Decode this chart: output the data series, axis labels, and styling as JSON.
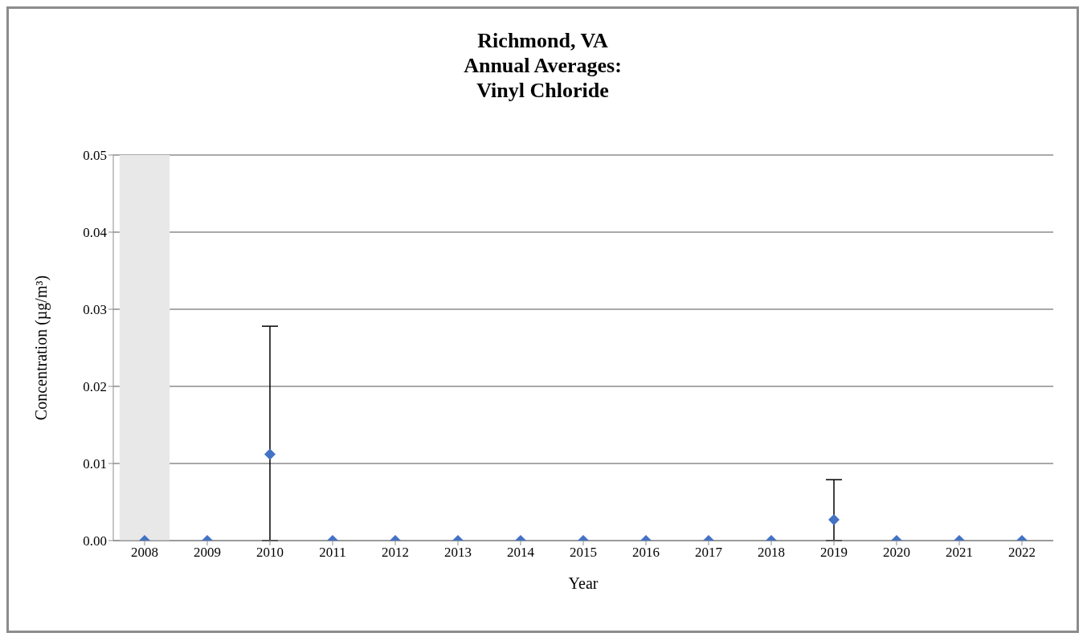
{
  "chart_data": {
    "type": "scatter",
    "title": "Richmond, VA\nAnnual Averages:\nVinyl Chloride",
    "xlabel": "Year",
    "ylabel": "Concentration (µg/m³)",
    "categories": [
      "2008",
      "2009",
      "2010",
      "2011",
      "2012",
      "2013",
      "2014",
      "2015",
      "2016",
      "2017",
      "2018",
      "2019",
      "2020",
      "2021",
      "2022"
    ],
    "series": [
      {
        "color": "#4472c4",
        "values": [
          0,
          0,
          0.0112,
          0,
          0,
          0,
          0,
          0,
          0,
          0,
          0,
          0.0027,
          0,
          0,
          0
        ],
        "errors": [
          null,
          null,
          [
            0,
            0.0278
          ],
          null,
          null,
          null,
          null,
          null,
          null,
          null,
          null,
          [
            0,
            0.0079
          ],
          null,
          null,
          null
        ]
      }
    ],
    "ylim": [
      0,
      0.05
    ],
    "yticks": [
      {
        "value": 0,
        "label": "0.00"
      },
      {
        "value": 0.01,
        "label": "0.01"
      },
      {
        "value": 0.02,
        "label": "0.02"
      },
      {
        "value": 0.03,
        "label": "0.03"
      },
      {
        "value": 0.04,
        "label": "0.04"
      },
      {
        "value": 0.05,
        "label": "0.05"
      }
    ],
    "grid": "y",
    "marker": "diamond",
    "legend": false,
    "bands": [
      {
        "axis": "x",
        "from": "2008",
        "to": "2008",
        "color": "#e8e8e8"
      }
    ]
  }
}
